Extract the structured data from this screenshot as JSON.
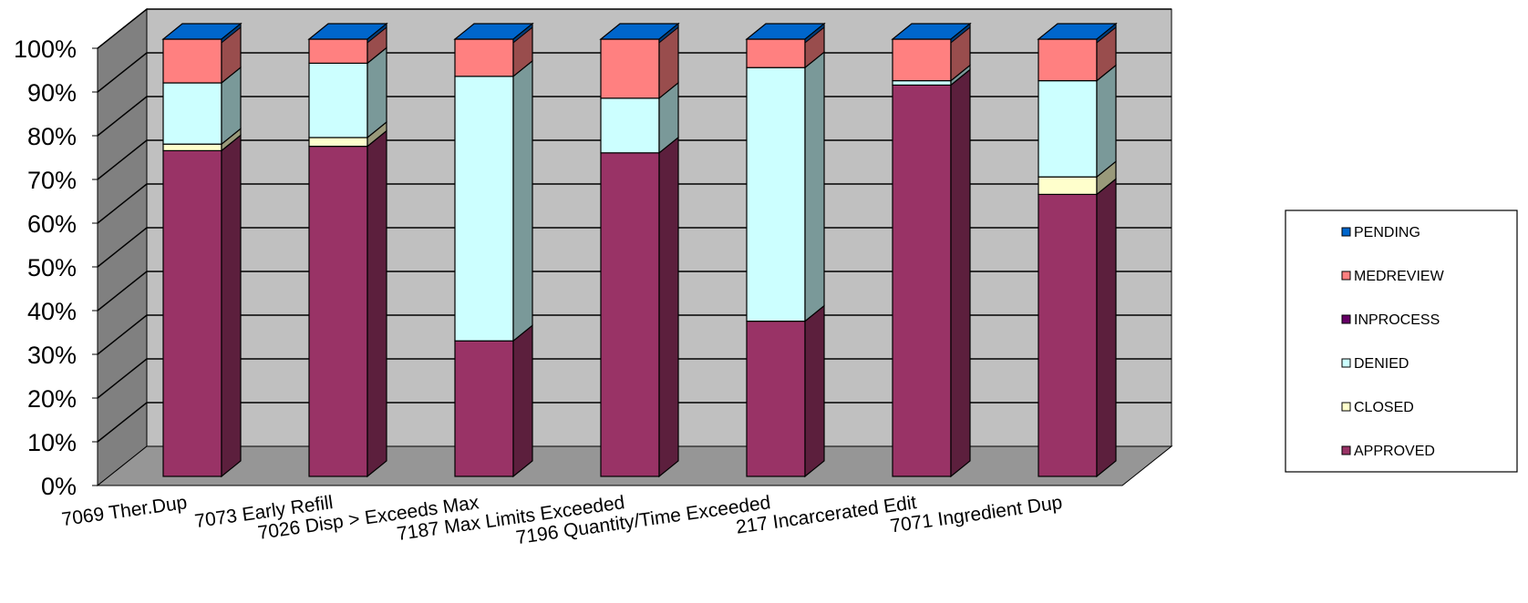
{
  "chart_data": {
    "type": "bar",
    "stacked": "percent",
    "three_d": true,
    "title": "",
    "xlabel": "",
    "ylabel": "",
    "ylim": [
      0,
      100
    ],
    "y_ticks": [
      "0%",
      "10%",
      "20%",
      "30%",
      "40%",
      "50%",
      "60%",
      "70%",
      "80%",
      "90%",
      "100%"
    ],
    "grid": true,
    "legend_position": "right",
    "categories": [
      "7069 Ther.Dup",
      "7073 Early Refill",
      "7026 Disp > Exceeds Max",
      "7187 Max Limits Exceeded",
      "7196 Quantity/Time Exceeded",
      "217 Incarcerated Edit",
      "7071 Ingredient Dup"
    ],
    "series": [
      {
        "name": "APPROVED",
        "color": "#993366",
        "values": [
          74.5,
          75.5,
          31,
          74,
          35.5,
          89.5,
          64.5
        ]
      },
      {
        "name": "CLOSED",
        "color": "#FFFFCC",
        "values": [
          1.5,
          2,
          0,
          0,
          0,
          0,
          4
        ]
      },
      {
        "name": "DENIED",
        "color": "#CCFFFF",
        "values": [
          14,
          17,
          60.5,
          12.5,
          58,
          1,
          22
        ]
      },
      {
        "name": "INPROCESS",
        "color": "#660066",
        "values": [
          0,
          0,
          0,
          0,
          0,
          0,
          0
        ]
      },
      {
        "name": "MEDREVIEW",
        "color": "#FF8080",
        "values": [
          10,
          5.5,
          8.5,
          13.5,
          6.5,
          9.5,
          9.5
        ]
      },
      {
        "name": "PENDING",
        "color": "#0066CC",
        "values": [
          0,
          0,
          0,
          0,
          0,
          0,
          0
        ]
      }
    ],
    "legend_order": [
      "PENDING",
      "MEDREVIEW",
      "INPROCESS",
      "DENIED",
      "CLOSED",
      "APPROVED"
    ],
    "colors": {
      "back_wall": "#C0C0C0",
      "side_wall": "#808080",
      "floor": "#969696",
      "gridline": "#000000"
    }
  }
}
